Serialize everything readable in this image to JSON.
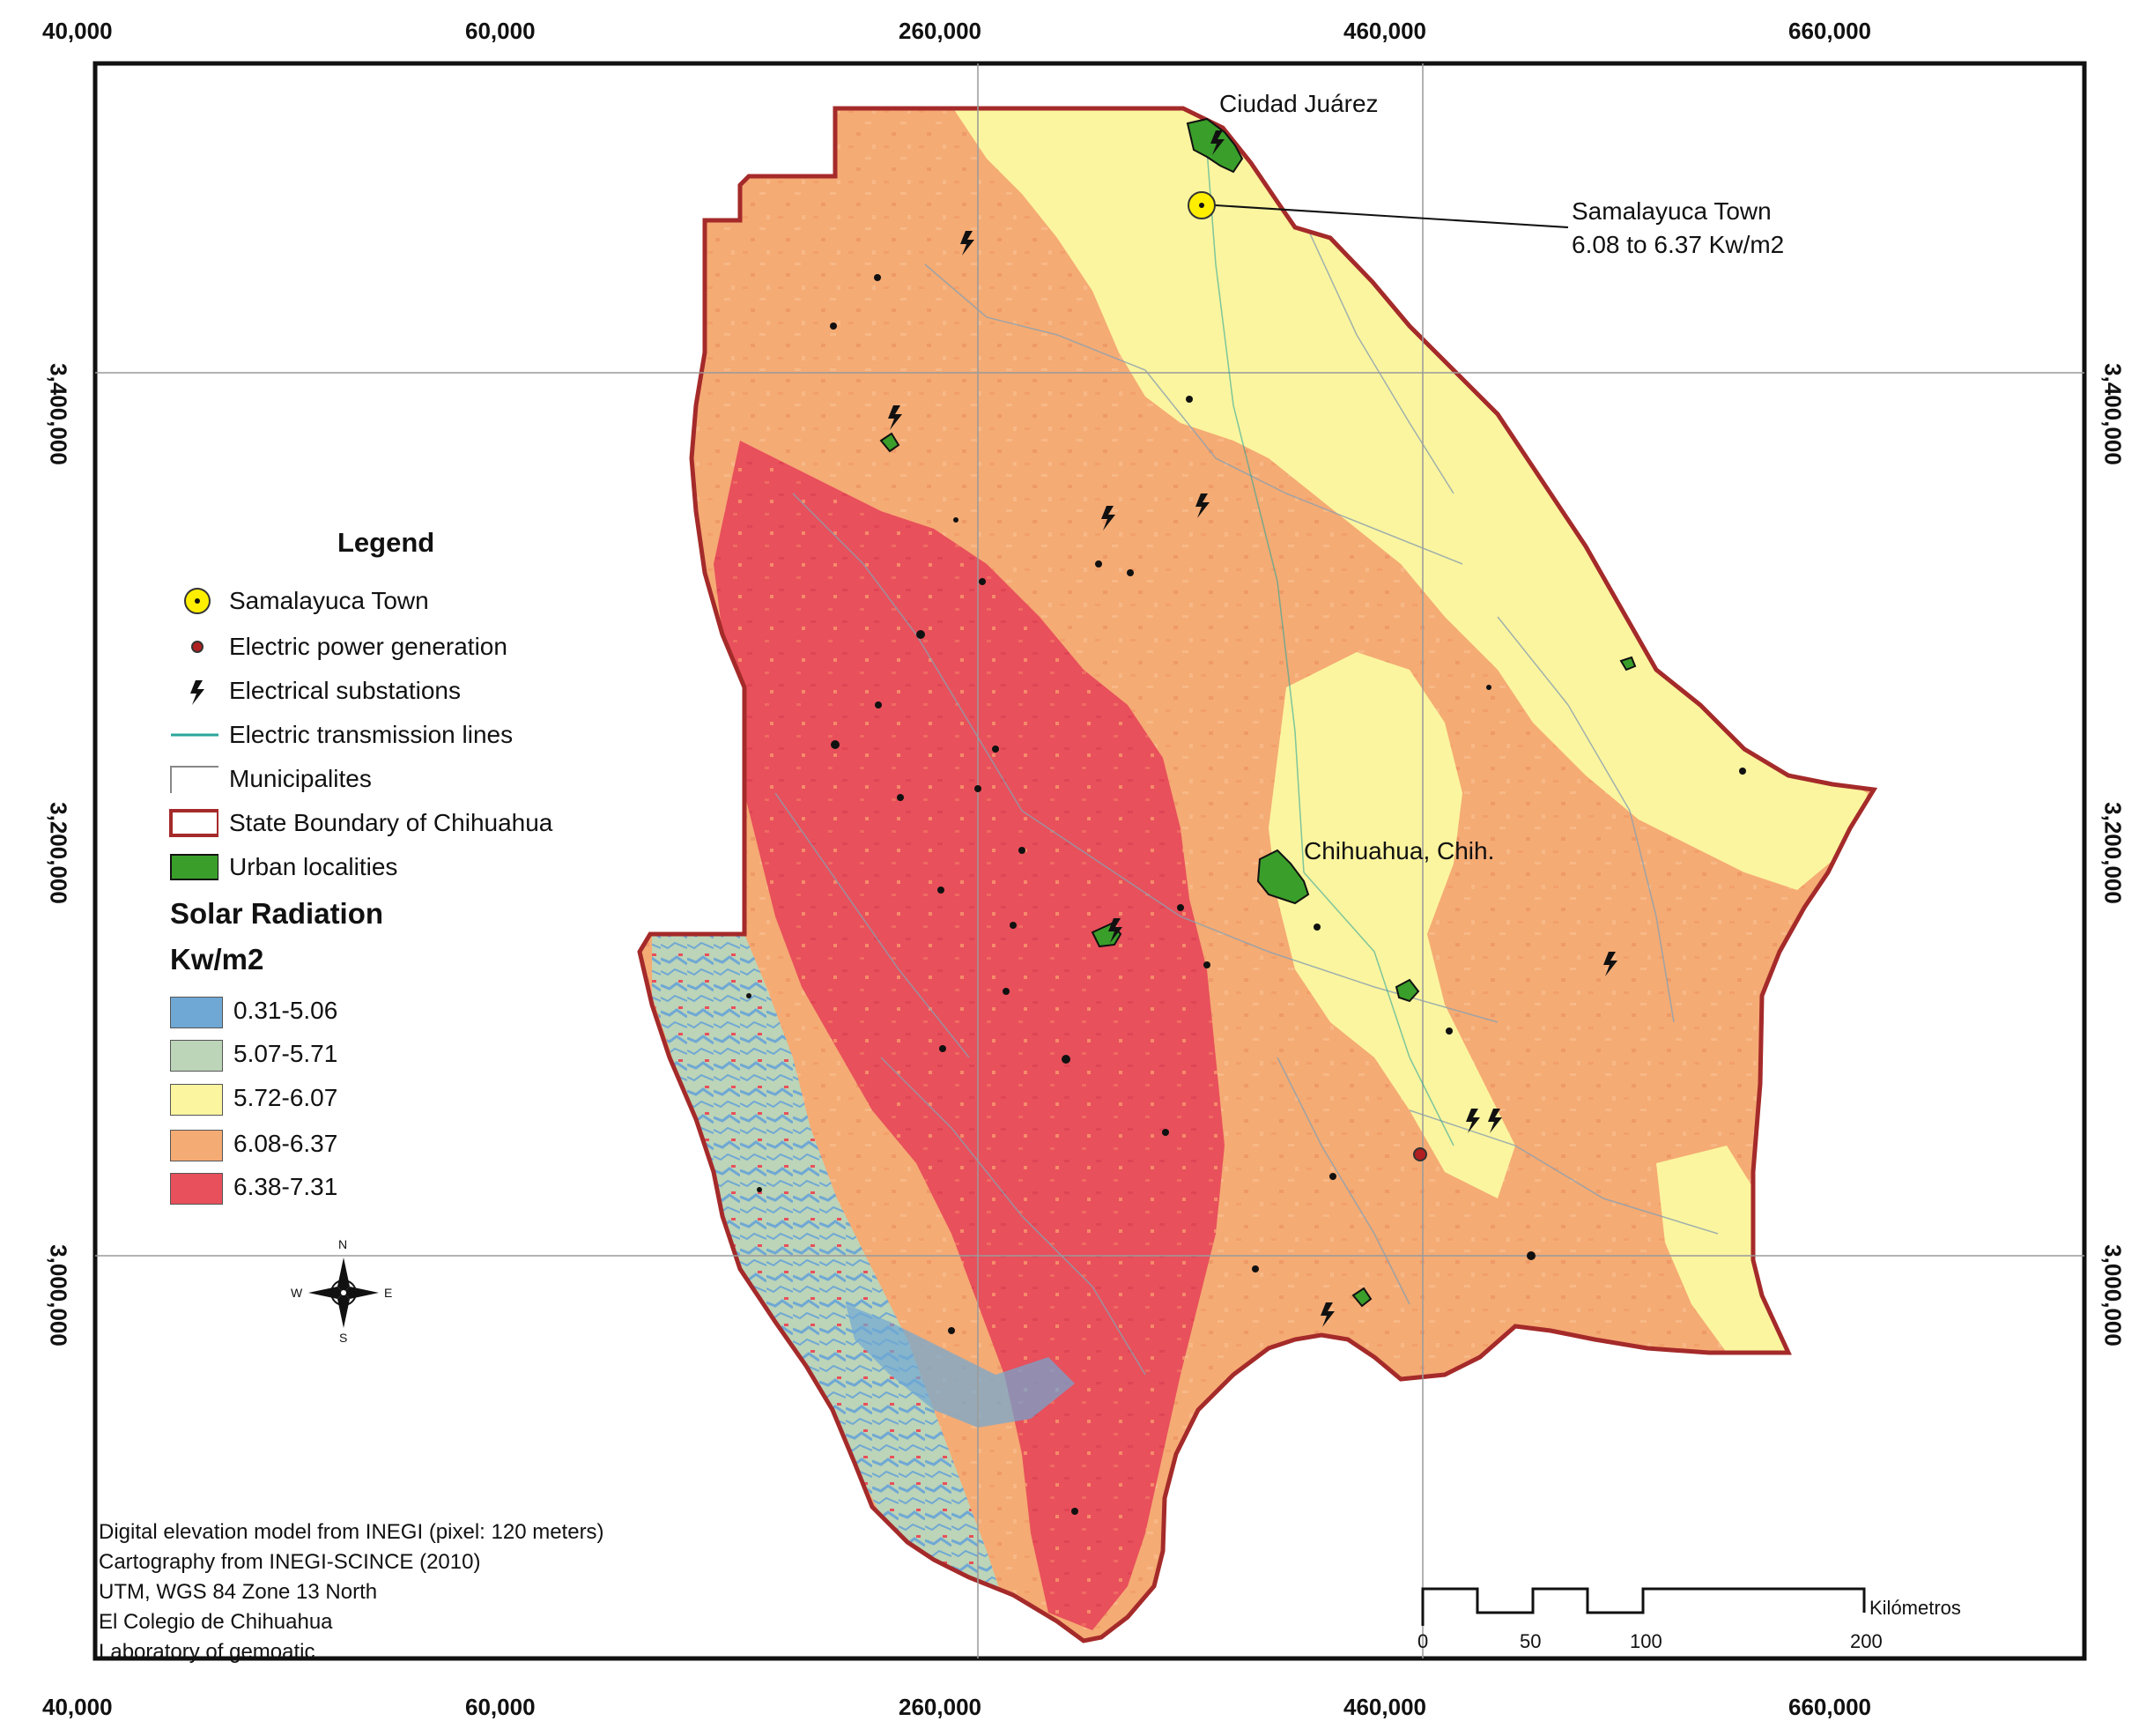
{
  "map": {
    "places": {
      "ciudad_juarez": "Ciudad Juárez",
      "chihuahua": "Chihuahua, Chih.",
      "callout_line1": "Samalayuca Town",
      "callout_line2": "6.08 to 6.37 Kw/m2"
    },
    "grid": {
      "top_ticks": [
        "40,000",
        "60,000",
        "260,000",
        "460,000",
        "660,000"
      ],
      "bottom_ticks": [
        "40,000",
        "60,000",
        "260,000",
        "460,000",
        "660,000"
      ],
      "left_ticks": [
        "3,400,000",
        "3,200,000",
        "3,000,000"
      ],
      "right_ticks": [
        "3,400,000",
        "3,200,000",
        "3,000,000"
      ]
    },
    "north_arrow": {
      "n": "N",
      "s": "S",
      "e": "E",
      "w": "W"
    }
  },
  "legend": {
    "title": "Legend",
    "items": [
      {
        "label": "Samalayuca Town",
        "icon": "town-marker-icon"
      },
      {
        "label": "Electric power generation",
        "icon": "power-plant-icon"
      },
      {
        "label": "Electrical substations",
        "icon": "lightning-bolt-icon"
      },
      {
        "label": "Electric transmission lines",
        "icon": "transmission-line-icon"
      },
      {
        "label": "Municipalites",
        "icon": "municipality-boundary-icon"
      },
      {
        "label": "State Boundary of Chihuahua",
        "icon": "state-boundary-icon"
      },
      {
        "label": "Urban localities",
        "icon": "urban-area-icon"
      }
    ],
    "ramp_title_1": "Solar Radiation",
    "ramp_title_2": "Kw/m2",
    "classes": [
      {
        "label": "0.31-5.06",
        "color": "#6fa8d4"
      },
      {
        "label": "5.07-5.71",
        "color": "#bcd4b8"
      },
      {
        "label": "5.72-6.07",
        "color": "#fbf59f"
      },
      {
        "label": "6.08-6.37",
        "color": "#f5ab74"
      },
      {
        "label": "6.38-7.31",
        "color": "#e8505b"
      }
    ]
  },
  "credits": [
    "Digital elevation model from INEGI (pixel: 120 meters)",
    "Cartography from INEGI-SCINCE (2010)",
    "UTM, WGS 84 Zone 13 North",
    "El Colegio de Chihuahua",
    "Laboratory of gemoatic"
  ],
  "scale_bar": {
    "labels": [
      "0",
      "50",
      "100",
      "200"
    ],
    "unit": "Kilómetros"
  },
  "colors": {
    "boundary": "#a52a2a",
    "urban": "#3a9e2a",
    "transmission": "#2aa59a",
    "town_marker": "#ffee00"
  }
}
